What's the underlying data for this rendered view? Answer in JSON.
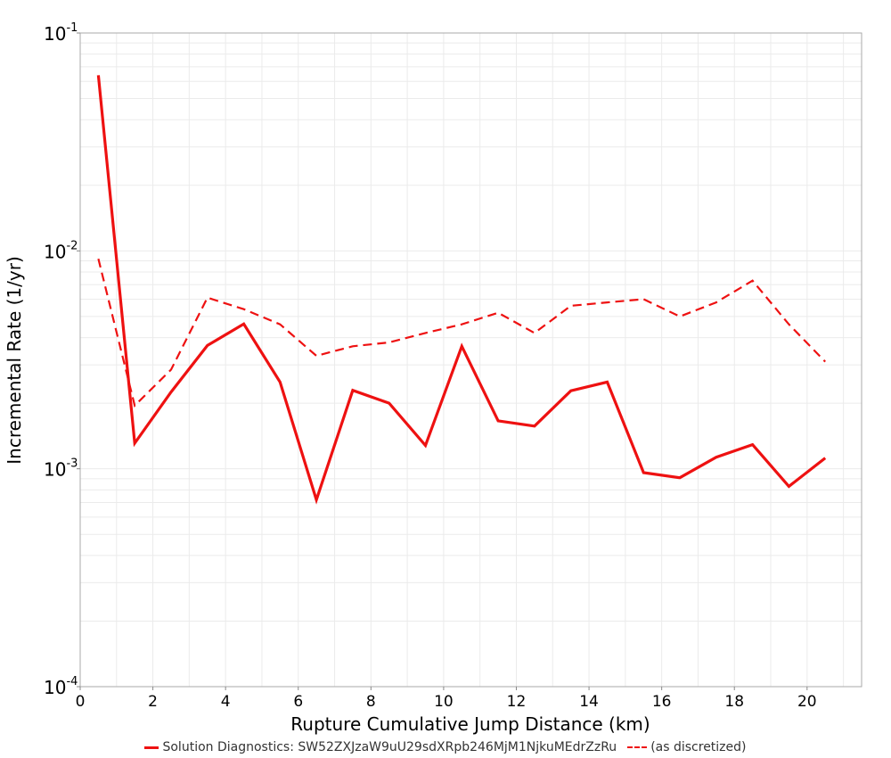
{
  "chart_data": {
    "type": "line",
    "xlabel": "Rupture Cumulative Jump Distance (km)",
    "ylabel": "Incremental Rate (1/yr)",
    "xlim": [
      0,
      21.5
    ],
    "ylim": [
      0.0001,
      0.1
    ],
    "yscale": "log",
    "grid": true,
    "legend_position": "bottom",
    "x_ticks": [
      0,
      2,
      4,
      6,
      8,
      10,
      12,
      14,
      16,
      18,
      20
    ],
    "y_ticks": [
      {
        "value": 0.1,
        "base": "10",
        "exp": "-1"
      },
      {
        "value": 0.01,
        "base": "10",
        "exp": "-2"
      },
      {
        "value": 0.001,
        "base": "10",
        "exp": "-3"
      },
      {
        "value": 0.0001,
        "base": "10",
        "exp": "-4"
      }
    ],
    "x": [
      0.5,
      1.5,
      2.5,
      3.5,
      4.5,
      5.5,
      6.5,
      7.5,
      8.5,
      9.5,
      10.5,
      11.5,
      12.5,
      13.5,
      14.5,
      15.5,
      16.5,
      17.5,
      18.5,
      19.5,
      20.5
    ],
    "series": [
      {
        "name": "Solution Diagnostics: SW52ZXJzaW9uU29sdXRpb246MjM1NjkuMEdrZzRu",
        "style": "solid",
        "color": "#ee1111",
        "values": [
          0.064,
          0.00131,
          0.00225,
          0.00368,
          0.00462,
          0.0025,
          0.00072,
          0.00229,
          0.002,
          0.00128,
          0.00365,
          0.00166,
          0.00157,
          0.00228,
          0.0025,
          0.00096,
          0.00091,
          0.00113,
          0.00129,
          0.00083,
          0.00112
        ]
      },
      {
        "name": "(as discretized)",
        "style": "dashed",
        "color": "#ee1111",
        "values": [
          0.0092,
          0.00195,
          0.00285,
          0.0061,
          0.0054,
          0.0046,
          0.0033,
          0.00365,
          0.0038,
          0.0042,
          0.0046,
          0.0052,
          0.0042,
          0.0056,
          0.0058,
          0.006,
          0.005,
          0.0058,
          0.0073,
          0.0046,
          0.0031
        ]
      }
    ]
  },
  "legend": {
    "items": [
      {
        "label": "Solution Diagnostics: SW52ZXJzaW9uU29sdXRpb246MjM1NjkuMEdrZzRu",
        "style": "solid"
      },
      {
        "label": "(as discretized)",
        "style": "dashed"
      }
    ]
  }
}
